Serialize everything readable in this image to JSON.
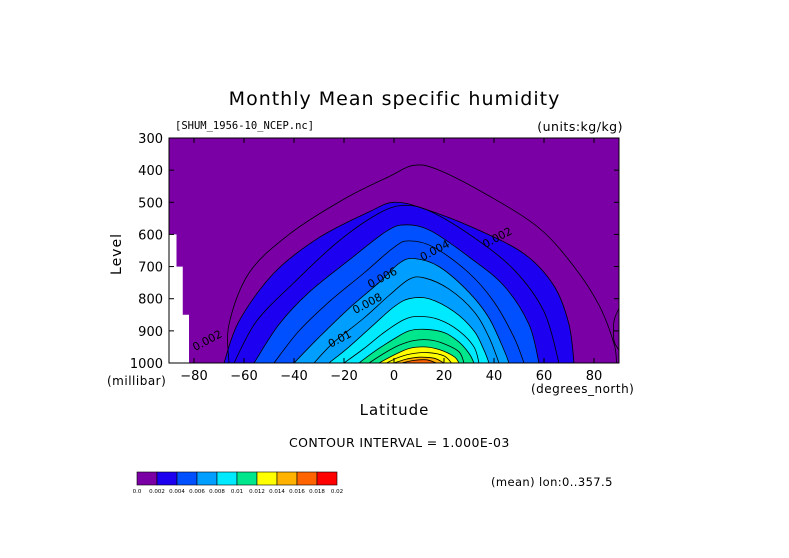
{
  "figure": {
    "title": "Monthly Mean specific humidity",
    "subtitle": "[SHUM_1956-10_NCEP.nc]",
    "units": "(units:kg/kg)",
    "ylabel": "Level",
    "yunit": "(millibar)",
    "xlabel": "Latitude",
    "xunit": "(degrees_north)",
    "contour_interval": "CONTOUR INTERVAL = 1.000E-03",
    "mean_note": "(mean) lon:0..357.5"
  },
  "chart_data": {
    "type": "heatmap",
    "title": "Monthly Mean specific humidity",
    "subtitle": "[SHUM_1956-10_NCEP.nc]",
    "xlabel": "Latitude",
    "ylabel": "Level",
    "xlim": [
      -90,
      90
    ],
    "ylim": [
      1000,
      300
    ],
    "x_ticks": [
      -80,
      -60,
      -40,
      -20,
      0,
      20,
      40,
      60,
      80
    ],
    "y_ticks": [
      300,
      400,
      500,
      600,
      700,
      800,
      900,
      1000
    ],
    "contour_interval": 0.001,
    "colorbar": {
      "levels": [
        "0.0",
        "0.002",
        "0.004",
        "0.006",
        "0.008",
        "0.01",
        "0.012",
        "0.014",
        "0.016",
        "0.018",
        "0.02"
      ],
      "colors": [
        "#7a00a6",
        "#1d00f0",
        "#0050ff",
        "#009eff",
        "#00eaff",
        "#00e68c",
        "#ffff00",
        "#ffb300",
        "#ff6400",
        "#ff0000"
      ]
    },
    "iso_levels": [
      0.0005,
      0.001,
      0.002,
      0.003,
      0.004,
      0.005,
      0.006,
      0.007,
      0.008,
      0.009,
      0.01,
      0.011,
      0.012,
      0.013,
      0.014,
      0.015,
      0.016,
      0.017
    ],
    "iso_lines": [
      [
        [
          -68,
          1000
        ],
        [
          -62,
          870
        ],
        [
          -48,
          720
        ],
        [
          -30,
          610
        ],
        [
          -10,
          530
        ],
        [
          0,
          500
        ],
        [
          12,
          520
        ],
        [
          32,
          580
        ],
        [
          52,
          660
        ],
        [
          64,
          760
        ],
        [
          70,
          880
        ],
        [
          72,
          1000
        ]
      ],
      [
        [
          -64,
          1000
        ],
        [
          -55,
          870
        ],
        [
          -40,
          750
        ],
        [
          -22,
          620
        ],
        [
          -5,
          530
        ],
        [
          5,
          510
        ],
        [
          15,
          530
        ],
        [
          32,
          610
        ],
        [
          48,
          710
        ],
        [
          60,
          840
        ],
        [
          66,
          1000
        ]
      ],
      [
        [
          -56,
          1000
        ],
        [
          -46,
          880
        ],
        [
          -34,
          780
        ],
        [
          -18,
          680
        ],
        [
          -3,
          590
        ],
        [
          5,
          570
        ],
        [
          15,
          590
        ],
        [
          30,
          670
        ],
        [
          44,
          760
        ],
        [
          54,
          880
        ],
        [
          58,
          1000
        ]
      ],
      [
        [
          -48,
          1000
        ],
        [
          -38,
          900
        ],
        [
          -26,
          810
        ],
        [
          -12,
          720
        ],
        [
          0,
          640
        ],
        [
          6,
          620
        ],
        [
          16,
          640
        ],
        [
          30,
          720
        ],
        [
          40,
          810
        ],
        [
          48,
          920
        ],
        [
          52,
          1000
        ]
      ],
      [
        [
          -40,
          1000
        ],
        [
          -30,
          920
        ],
        [
          -18,
          830
        ],
        [
          -6,
          750
        ],
        [
          2,
          690
        ],
        [
          8,
          675
        ],
        [
          18,
          700
        ],
        [
          30,
          780
        ],
        [
          38,
          860
        ],
        [
          44,
          960
        ],
        [
          46,
          1000
        ]
      ],
      [
        [
          -32,
          1000
        ],
        [
          -24,
          935
        ],
        [
          -12,
          860
        ],
        [
          -2,
          790
        ],
        [
          6,
          740
        ],
        [
          12,
          735
        ],
        [
          22,
          770
        ],
        [
          32,
          840
        ],
        [
          38,
          920
        ],
        [
          42,
          1000
        ]
      ],
      [
        [
          -26,
          1000
        ],
        [
          -18,
          950
        ],
        [
          -8,
          880
        ],
        [
          0,
          825
        ],
        [
          6,
          800
        ],
        [
          14,
          800
        ],
        [
          24,
          840
        ],
        [
          32,
          900
        ],
        [
          36,
          960
        ],
        [
          38,
          1000
        ]
      ],
      [
        [
          -20,
          1000
        ],
        [
          -12,
          955
        ],
        [
          -4,
          905
        ],
        [
          4,
          865
        ],
        [
          10,
          855
        ],
        [
          18,
          865
        ],
        [
          26,
          900
        ],
        [
          32,
          950
        ],
        [
          34,
          1000
        ]
      ],
      [
        [
          -14,
          1000
        ],
        [
          -8,
          965
        ],
        [
          0,
          925
        ],
        [
          6,
          900
        ],
        [
          12,
          895
        ],
        [
          20,
          905
        ],
        [
          26,
          935
        ],
        [
          30,
          970
        ],
        [
          32,
          1000
        ]
      ],
      [
        [
          -10,
          1000
        ],
        [
          -4,
          970
        ],
        [
          2,
          945
        ],
        [
          8,
          930
        ],
        [
          14,
          928
        ],
        [
          20,
          940
        ],
        [
          26,
          965
        ],
        [
          28,
          1000
        ]
      ],
      [
        [
          -6,
          1000
        ],
        [
          0,
          975
        ],
        [
          6,
          955
        ],
        [
          12,
          950
        ],
        [
          18,
          958
        ],
        [
          24,
          980
        ],
        [
          26,
          1000
        ]
      ],
      [
        [
          -3,
          1000
        ],
        [
          2,
          982
        ],
        [
          8,
          970
        ],
        [
          14,
          968
        ],
        [
          20,
          978
        ],
        [
          23,
          1000
        ]
      ],
      [
        [
          0,
          1000
        ],
        [
          5,
          988
        ],
        [
          10,
          982
        ],
        [
          16,
          985
        ],
        [
          20,
          1000
        ]
      ],
      [
        [
          3,
          1000
        ],
        [
          8,
          992
        ],
        [
          13,
          990
        ],
        [
          17,
          1000
        ]
      ]
    ],
    "contour_labels": [
      {
        "text": "0.002",
        "lat": 42,
        "lev": 620
      },
      {
        "text": "0.004",
        "lat": 17,
        "lev": 660
      },
      {
        "text": "0.006",
        "lat": -4,
        "lev": 745
      },
      {
        "text": "0.008",
        "lat": -10,
        "lev": 825
      },
      {
        "text": "0.01",
        "lat": -21,
        "lev": 935
      },
      {
        "text": "0.002",
        "lat": -74,
        "lev": 940
      }
    ]
  }
}
